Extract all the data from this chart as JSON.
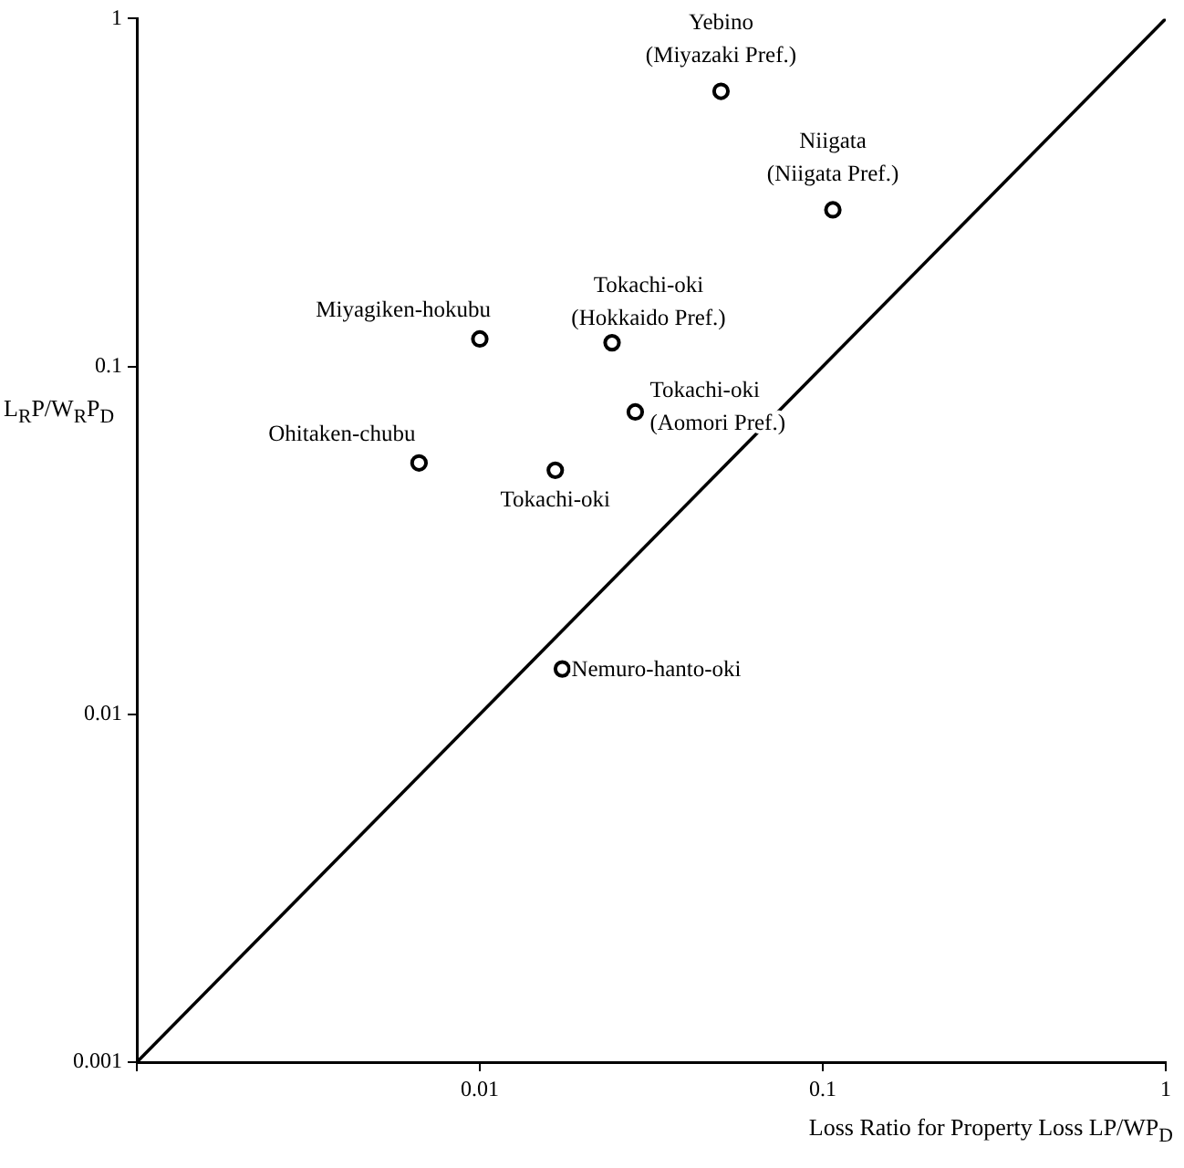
{
  "chart_data": {
    "type": "scatter",
    "xlabel": "Loss Ratio for Property Loss LP/WP$_{D}$",
    "ylabel": "L$_{R}$P/W$_{R}$P$_{D}$",
    "log": "xy",
    "grid": false,
    "legend": false,
    "marker": "circle",
    "xlim": [
      0.001,
      1
    ],
    "ylim": [
      0.001,
      1
    ],
    "xticks": [
      {
        "value": 0.001,
        "label": null
      },
      0.01,
      0.1,
      1
    ],
    "yticks": [
      0.001,
      0.01,
      0.1,
      1
    ],
    "series": [
      {
        "type": "scatter",
        "color": "#000000",
        "x": [
          0.0505,
          0.107,
          0.01,
          0.0243,
          0.0284,
          0.00665,
          0.0166,
          0.0174
        ],
        "values": [
          0.618,
          0.282,
          0.12,
          0.117,
          0.074,
          0.0528,
          0.0503,
          0.0135
        ]
      },
      {
        "type": "line",
        "color": "#000000",
        "marker": "none",
        "line_style": "solid",
        "x": [
          0.001,
          1
        ],
        "values": [
          0.001,
          1
        ]
      }
    ],
    "annotations": [
      {
        "text": "Yebino\n(Miyazaki Pref.)",
        "x": 0.0505,
        "y": 0.618
      },
      {
        "text": "Niigata\n(Niigata Pref.)",
        "x": 0.107,
        "y": 0.282
      },
      {
        "text": "Miyagiken-hokubu",
        "x": 0.01,
        "y": 0.12
      },
      {
        "text": "Tokachi-oki\n(Hokkaido Pref.)",
        "x": 0.0243,
        "y": 0.117
      },
      {
        "text": "Tokachi-oki\n(Aomori Pref.)",
        "x": 0.0284,
        "y": 0.074
      },
      {
        "text": "Ohitaken-chubu",
        "x": 0.00665,
        "y": 0.0528
      },
      {
        "text": "Tokachi-oki",
        "x": 0.0166,
        "y": 0.0503
      },
      {
        "text": "Nemuro-hanto-oki",
        "x": 0.0174,
        "y": 0.0135
      }
    ]
  }
}
